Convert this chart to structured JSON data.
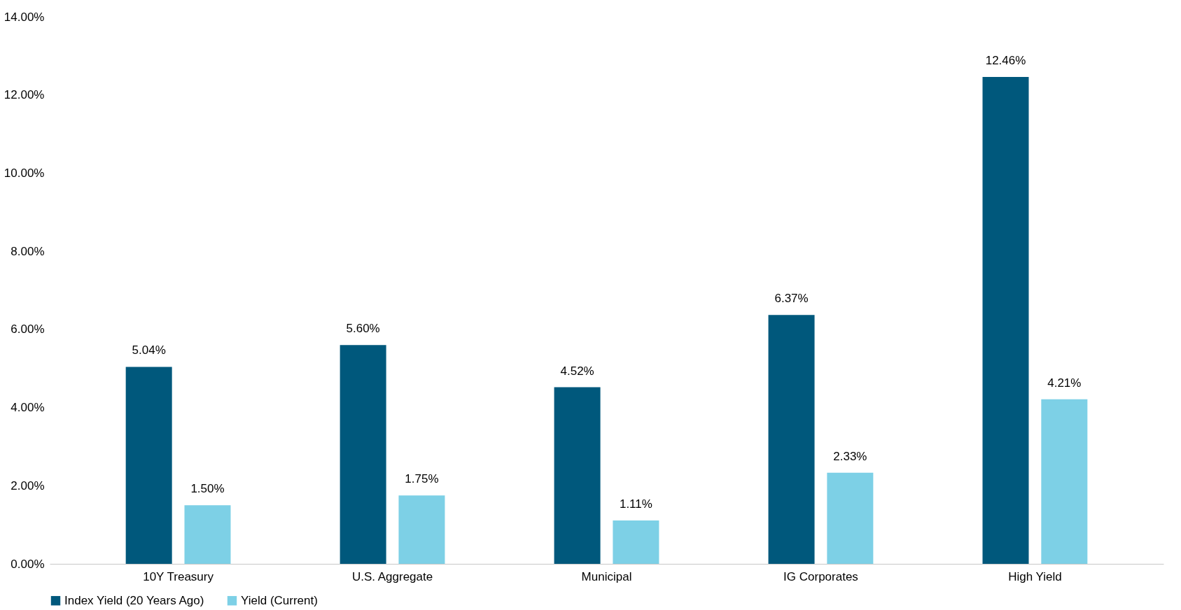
{
  "chart_data": {
    "type": "bar",
    "categories": [
      "10Y Treasury",
      "U.S. Aggregate",
      "Municipal",
      "IG Corporates",
      "High Yield"
    ],
    "series": [
      {
        "name": "Index Yield (20 Years Ago)",
        "color": "#00587c",
        "values": [
          5.04,
          5.6,
          4.52,
          6.37,
          12.46
        ],
        "value_labels": [
          "5.04%",
          "5.60%",
          "4.52%",
          "6.37%",
          "12.46%"
        ]
      },
      {
        "name": "Yield (Current)",
        "color": "#7dd0e6",
        "values": [
          1.5,
          1.75,
          1.11,
          2.33,
          4.21
        ],
        "value_labels": [
          "1.50%",
          "1.75%",
          "1.11%",
          "2.33%",
          "4.21%"
        ]
      }
    ],
    "ylim": [
      0,
      14
    ],
    "yticks": [
      {
        "value": 0,
        "label": "0.00%"
      },
      {
        "value": 2,
        "label": "2.00%"
      },
      {
        "value": 4,
        "label": "4.00%"
      },
      {
        "value": 6,
        "label": "6.00%"
      },
      {
        "value": 8,
        "label": "8.00%"
      },
      {
        "value": 10,
        "label": "10.00%"
      },
      {
        "value": 12,
        "label": "12.00%"
      },
      {
        "value": 14,
        "label": "14.00%"
      }
    ],
    "grid": false,
    "legend": "bottom"
  }
}
